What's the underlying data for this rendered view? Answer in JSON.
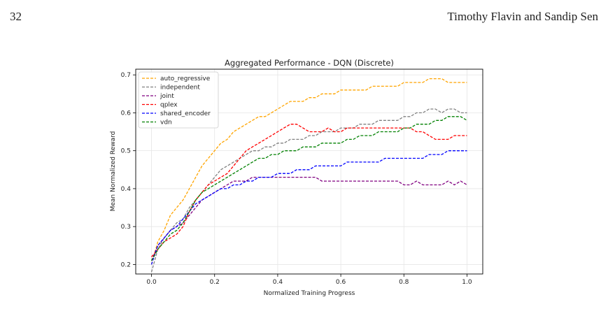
{
  "page": {
    "number": "32",
    "running_head": "Timothy Flavin and Sandip Sen"
  },
  "chart_data": {
    "type": "line",
    "title": "Aggregated Performance - DQN (Discrete)",
    "xlabel": "Normalized Training Progress",
    "ylabel": "Mean Normalized Reward",
    "xlim": [
      -0.05,
      1.05
    ],
    "ylim": [
      0.175,
      0.715
    ],
    "xticks": [
      0.0,
      0.2,
      0.4,
      0.6,
      0.8,
      1.0
    ],
    "xtick_labels": [
      "0.0",
      "0.2",
      "0.4",
      "0.6",
      "0.8",
      "1.0"
    ],
    "yticks": [
      0.2,
      0.3,
      0.4,
      0.5,
      0.6,
      0.7
    ],
    "ytick_labels": [
      "0.2",
      "0.3",
      "0.4",
      "0.5",
      "0.6",
      "0.7"
    ],
    "grid": true,
    "legend_position": "top-left",
    "line_style": "dashed",
    "x": [
      0.0,
      0.02,
      0.04,
      0.06,
      0.08,
      0.1,
      0.12,
      0.14,
      0.16,
      0.18,
      0.2,
      0.22,
      0.24,
      0.26,
      0.28,
      0.3,
      0.32,
      0.34,
      0.36,
      0.38,
      0.4,
      0.42,
      0.44,
      0.46,
      0.48,
      0.5,
      0.52,
      0.54,
      0.56,
      0.58,
      0.6,
      0.62,
      0.64,
      0.66,
      0.68,
      0.7,
      0.72,
      0.74,
      0.76,
      0.78,
      0.8,
      0.82,
      0.84,
      0.86,
      0.88,
      0.9,
      0.92,
      0.94,
      0.96,
      0.98,
      1.0
    ],
    "series": [
      {
        "name": "auto_regressive",
        "color": "#ffa500",
        "values": [
          0.2,
          0.26,
          0.29,
          0.33,
          0.35,
          0.37,
          0.4,
          0.43,
          0.46,
          0.48,
          0.5,
          0.52,
          0.53,
          0.55,
          0.56,
          0.57,
          0.58,
          0.59,
          0.59,
          0.6,
          0.61,
          0.62,
          0.63,
          0.63,
          0.63,
          0.64,
          0.64,
          0.65,
          0.65,
          0.65,
          0.66,
          0.66,
          0.66,
          0.66,
          0.66,
          0.67,
          0.67,
          0.67,
          0.67,
          0.67,
          0.68,
          0.68,
          0.68,
          0.68,
          0.69,
          0.69,
          0.69,
          0.68,
          0.68,
          0.68,
          0.68
        ]
      },
      {
        "name": "independent",
        "color": "#808080",
        "values": [
          0.18,
          0.24,
          0.27,
          0.29,
          0.31,
          0.32,
          0.35,
          0.37,
          0.39,
          0.41,
          0.43,
          0.45,
          0.46,
          0.47,
          0.48,
          0.49,
          0.5,
          0.5,
          0.51,
          0.51,
          0.52,
          0.52,
          0.53,
          0.53,
          0.53,
          0.54,
          0.54,
          0.55,
          0.55,
          0.55,
          0.56,
          0.56,
          0.56,
          0.57,
          0.57,
          0.57,
          0.58,
          0.58,
          0.58,
          0.58,
          0.59,
          0.59,
          0.6,
          0.6,
          0.61,
          0.61,
          0.6,
          0.61,
          0.61,
          0.6,
          0.6
        ]
      },
      {
        "name": "joint",
        "color": "#800080",
        "values": [
          0.21,
          0.25,
          0.27,
          0.29,
          0.3,
          0.31,
          0.33,
          0.35,
          0.37,
          0.38,
          0.39,
          0.4,
          0.41,
          0.42,
          0.42,
          0.42,
          0.43,
          0.43,
          0.43,
          0.43,
          0.43,
          0.43,
          0.43,
          0.43,
          0.43,
          0.43,
          0.43,
          0.42,
          0.42,
          0.42,
          0.42,
          0.42,
          0.42,
          0.42,
          0.42,
          0.42,
          0.42,
          0.42,
          0.42,
          0.42,
          0.41,
          0.41,
          0.42,
          0.41,
          0.41,
          0.41,
          0.41,
          0.42,
          0.41,
          0.42,
          0.41
        ]
      },
      {
        "name": "qplex",
        "color": "#ff0000",
        "values": [
          0.22,
          0.24,
          0.26,
          0.27,
          0.28,
          0.3,
          0.34,
          0.37,
          0.39,
          0.41,
          0.42,
          0.43,
          0.44,
          0.46,
          0.48,
          0.5,
          0.51,
          0.52,
          0.53,
          0.54,
          0.55,
          0.56,
          0.57,
          0.57,
          0.56,
          0.55,
          0.55,
          0.55,
          0.56,
          0.55,
          0.55,
          0.56,
          0.56,
          0.56,
          0.56,
          0.56,
          0.56,
          0.56,
          0.56,
          0.56,
          0.56,
          0.56,
          0.55,
          0.55,
          0.54,
          0.53,
          0.53,
          0.53,
          0.54,
          0.54,
          0.54
        ]
      },
      {
        "name": "shared_encoder",
        "color": "#0000ff",
        "values": [
          0.2,
          0.25,
          0.27,
          0.29,
          0.3,
          0.32,
          0.34,
          0.36,
          0.37,
          0.38,
          0.39,
          0.4,
          0.4,
          0.41,
          0.41,
          0.42,
          0.42,
          0.43,
          0.43,
          0.43,
          0.44,
          0.44,
          0.44,
          0.45,
          0.45,
          0.45,
          0.46,
          0.46,
          0.46,
          0.46,
          0.46,
          0.47,
          0.47,
          0.47,
          0.47,
          0.47,
          0.47,
          0.48,
          0.48,
          0.48,
          0.48,
          0.48,
          0.48,
          0.48,
          0.49,
          0.49,
          0.49,
          0.5,
          0.5,
          0.5,
          0.5
        ]
      },
      {
        "name": "vdn",
        "color": "#008000",
        "values": [
          0.21,
          0.24,
          0.26,
          0.28,
          0.29,
          0.31,
          0.34,
          0.37,
          0.39,
          0.4,
          0.41,
          0.42,
          0.43,
          0.44,
          0.45,
          0.46,
          0.47,
          0.48,
          0.48,
          0.49,
          0.49,
          0.5,
          0.5,
          0.5,
          0.51,
          0.51,
          0.51,
          0.52,
          0.52,
          0.52,
          0.52,
          0.53,
          0.53,
          0.54,
          0.54,
          0.54,
          0.55,
          0.55,
          0.55,
          0.55,
          0.56,
          0.56,
          0.57,
          0.57,
          0.57,
          0.58,
          0.58,
          0.59,
          0.59,
          0.59,
          0.58
        ]
      }
    ]
  }
}
